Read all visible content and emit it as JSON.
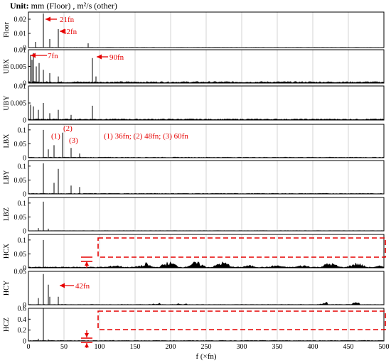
{
  "header": {
    "unit_label": "Unit:",
    "unit_text": "mm (Floor) , m²/s (other)"
  },
  "chart_data": {
    "type": "area",
    "xlabel": "f (×fn)",
    "xlim": [
      0,
      500
    ],
    "xticks": [
      "0",
      "50",
      "100",
      "150",
      "200",
      "250",
      "300",
      "350",
      "400",
      "450",
      "500"
    ],
    "grid": true,
    "line_color": "#000000",
    "annotation_color": "#e60000",
    "panels": [
      {
        "ylabel": "Floor",
        "ylim": [
          0,
          0.025
        ],
        "yticks": [
          "0",
          "0.01",
          "0.02"
        ],
        "peaks": [
          [
            21,
            0.024
          ],
          [
            42,
            0.013
          ],
          [
            10,
            0.004
          ],
          [
            30,
            0.006
          ],
          [
            84,
            0.003
          ]
        ],
        "background": {
          "level": 0.0002,
          "bands": []
        },
        "annotations": [
          {
            "text": "21fn"
          },
          {
            "text": "42fn"
          }
        ]
      },
      {
        "ylabel": "UBX",
        "ylim": [
          0,
          0.01
        ],
        "yticks": [
          "0",
          "0.005",
          "0.01"
        ],
        "peaks": [
          [
            3,
            0.0085
          ],
          [
            5,
            0.007
          ],
          [
            7,
            0.009
          ],
          [
            11,
            0.005
          ],
          [
            15,
            0.006
          ],
          [
            21,
            0.004
          ],
          [
            30,
            0.003
          ],
          [
            42,
            0.002
          ],
          [
            90,
            0.0075
          ],
          [
            95,
            0.002
          ]
        ],
        "background": {
          "level": 0.0004,
          "bands": []
        },
        "annotations": [
          {
            "text": "7fn"
          },
          {
            "text": "90fn"
          }
        ]
      },
      {
        "ylabel": "UBY",
        "ylim": [
          0,
          0.01
        ],
        "yticks": [
          "0",
          "0.005",
          "0.01"
        ],
        "peaks": [
          [
            3,
            0.0045
          ],
          [
            7,
            0.004
          ],
          [
            14,
            0.003
          ],
          [
            21,
            0.005
          ],
          [
            30,
            0.002
          ],
          [
            42,
            0.003
          ],
          [
            60,
            0.0015
          ],
          [
            90,
            0.0042
          ]
        ],
        "background": {
          "level": 0.0003,
          "bands": []
        },
        "annotations": []
      },
      {
        "ylabel": "LBX",
        "ylim": [
          0,
          0.12
        ],
        "yticks": [
          "0",
          "0.05",
          "0.1"
        ],
        "peaks": [
          [
            21,
            0.1
          ],
          [
            28,
            0.03
          ],
          [
            36,
            0.045
          ],
          [
            48,
            0.09
          ],
          [
            60,
            0.035
          ],
          [
            72,
            0.015
          ]
        ],
        "background": {
          "level": 0.002,
          "bands": []
        },
        "annotations": [
          {
            "text": "(1)"
          },
          {
            "text": "(2)"
          },
          {
            "text": "(3)"
          },
          {
            "text": "(1) 36fn; (2) 48fn; (3) 60fn"
          }
        ]
      },
      {
        "ylabel": "LBY",
        "ylim": [
          0,
          0.12
        ],
        "yticks": [
          "0",
          "0.05",
          "0.1"
        ],
        "peaks": [
          [
            21,
            0.11
          ],
          [
            36,
            0.04
          ],
          [
            42,
            0.09
          ],
          [
            60,
            0.03
          ],
          [
            72,
            0.025
          ]
        ],
        "background": {
          "level": 0.002,
          "bands": []
        },
        "annotations": []
      },
      {
        "ylabel": "LBZ",
        "ylim": [
          0,
          0.12
        ],
        "yticks": [
          "0",
          "0.05",
          "0.1"
        ],
        "peaks": [
          [
            21,
            0.105
          ],
          [
            14,
            0.01
          ],
          [
            28,
            0.008
          ]
        ],
        "background": {
          "level": 0.001,
          "bands": []
        },
        "annotations": []
      },
      {
        "ylabel": "HCX",
        "ylim": [
          0,
          0.12
        ],
        "yticks": [
          "0",
          "0.05",
          "0.1"
        ],
        "peaks": [
          [
            21,
            0.1
          ]
        ],
        "background": {
          "level": 0.003,
          "bands": [
            [
              100,
              500,
              0.008
            ],
            [
              165,
              290,
              0.018
            ],
            [
              400,
              480,
              0.015
            ]
          ]
        },
        "annotations": []
      },
      {
        "ylabel": "HCY",
        "ylim": [
          0,
          0.05
        ],
        "yticks": [
          "0",
          "0.05"
        ],
        "peaks": [
          [
            21,
            0.046
          ],
          [
            14,
            0.01
          ],
          [
            28,
            0.03
          ],
          [
            42,
            0.012
          ],
          [
            30,
            0.012
          ]
        ],
        "background": {
          "level": 0.0005,
          "bands": [
            [
              175,
              185,
              0.008
            ],
            [
              210,
              222,
              0.006
            ],
            [
              410,
              420,
              0.004
            ],
            [
              455,
              465,
              0.003
            ]
          ]
        },
        "annotations": [
          {
            "text": "42fn"
          }
        ]
      },
      {
        "ylabel": "HCZ",
        "ylim": [
          0,
          0.6
        ],
        "yticks": [
          "0",
          "0.2",
          "0.4",
          "0.6"
        ],
        "peaks": [
          [
            21,
            0.6
          ],
          [
            14,
            0.04
          ],
          [
            28,
            0.03
          ]
        ],
        "background": {
          "level": 0.01,
          "bands": []
        },
        "annotations": []
      }
    ]
  }
}
